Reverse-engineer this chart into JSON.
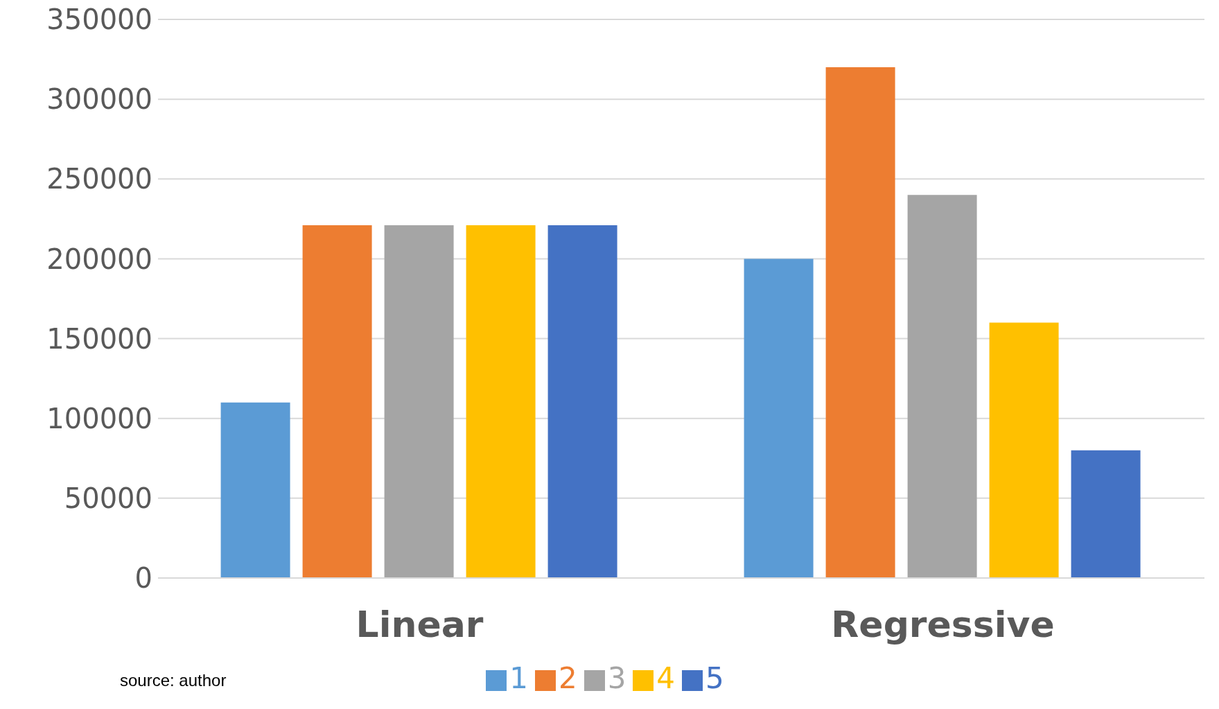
{
  "chart_data": {
    "type": "bar",
    "categories": [
      "Linear",
      "Regressive"
    ],
    "series": [
      {
        "name": "1",
        "color": "#5b9bd5",
        "values": [
          110000,
          200000
        ]
      },
      {
        "name": "2",
        "color": "#ed7d31",
        "values": [
          221000,
          320000
        ]
      },
      {
        "name": "3",
        "color": "#a5a5a5",
        "values": [
          221000,
          240000
        ]
      },
      {
        "name": "4",
        "color": "#ffc000",
        "values": [
          221000,
          160000
        ]
      },
      {
        "name": "5",
        "color": "#4472c4",
        "values": [
          221000,
          80000
        ]
      }
    ],
    "ylim": [
      0,
      350000
    ],
    "yticks": [
      0,
      50000,
      100000,
      150000,
      200000,
      250000,
      300000,
      350000
    ],
    "grid": "y",
    "legend": "bottom",
    "annotations": [
      "source: author"
    ]
  }
}
